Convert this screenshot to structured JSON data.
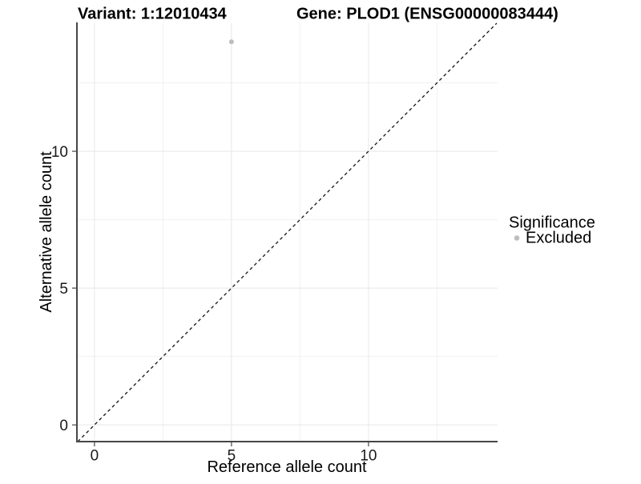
{
  "chart_data": {
    "type": "scatter",
    "titles": {
      "variant": "Variant: 1:12010434",
      "gene": "Gene: PLOD1 (ENSG00000083444)"
    },
    "xlabel": "Reference allele count",
    "ylabel": "Alternative allele count",
    "x_ticks": [
      0,
      5,
      10
    ],
    "y_ticks": [
      0,
      5,
      10
    ],
    "x_minor_ticks": [
      2.5,
      7.5,
      12.5
    ],
    "y_minor_ticks": [
      2.5,
      7.5,
      12.5
    ],
    "xlim": [
      -0.64,
      14.71
    ],
    "ylim": [
      -0.61,
      14.68
    ],
    "grid": true,
    "legend": {
      "position": "right",
      "title": "Significance",
      "items": [
        {
          "label": "Excluded",
          "color": "#bdbdbd"
        }
      ]
    },
    "series": [
      {
        "name": "Excluded",
        "points": [
          {
            "x": 5,
            "y": 14
          }
        ]
      }
    ],
    "identity_line": {
      "slope": 1,
      "intercept": 0,
      "style": "dashed",
      "color": "#111111"
    },
    "colors": {
      "point": "#bdbdbd",
      "grid_major": "#e7e7e7",
      "grid_minor": "#f1f1f1",
      "axis": "#464646",
      "background": "#ffffff"
    }
  }
}
